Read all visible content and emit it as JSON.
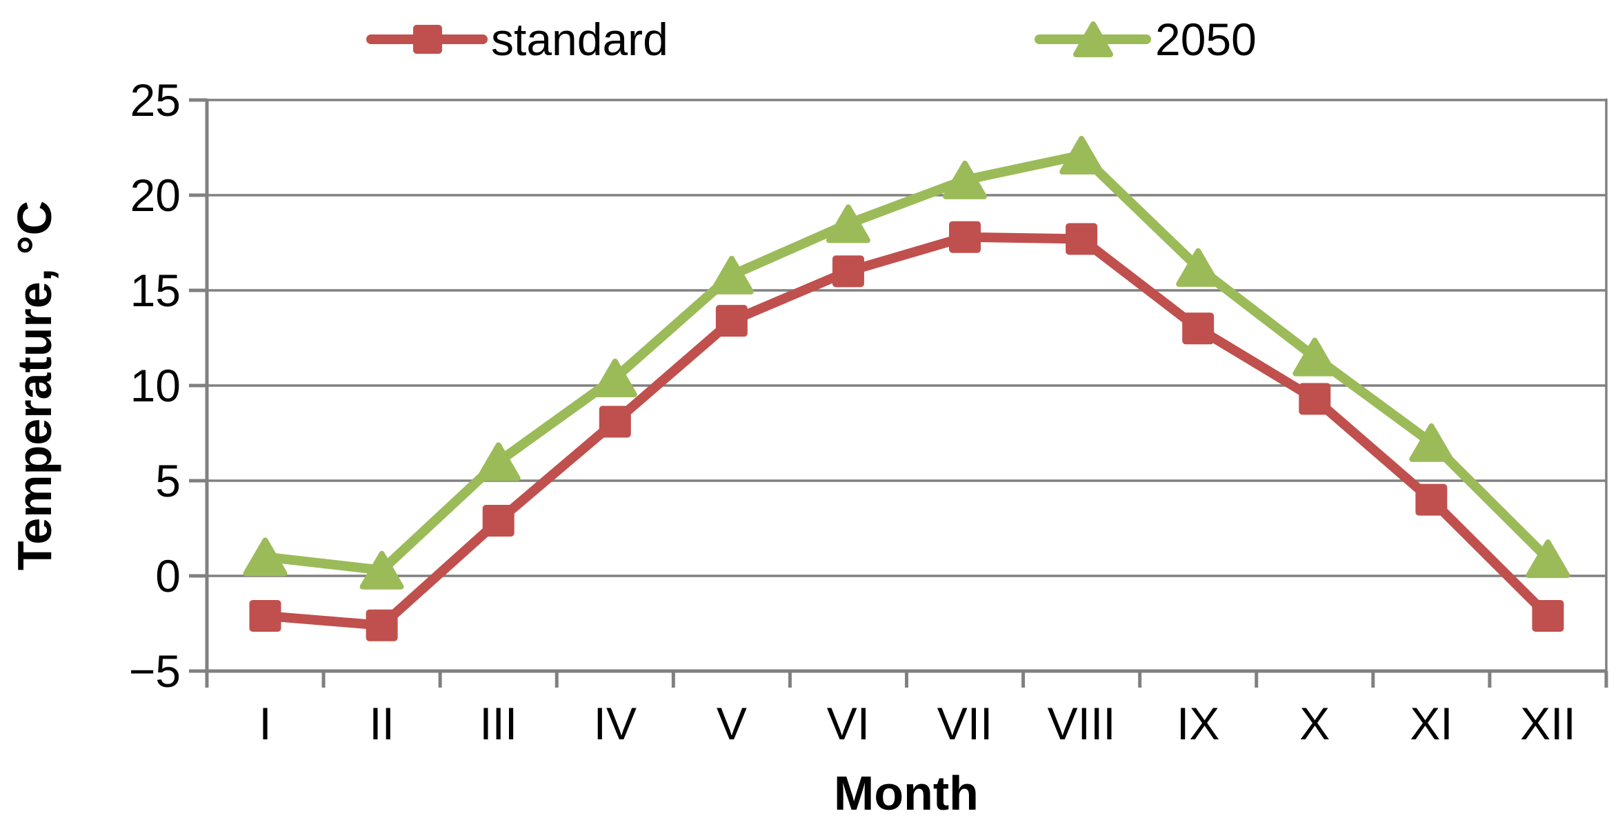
{
  "chart_data": {
    "type": "line",
    "title": "",
    "categories": [
      "I",
      "II",
      "III",
      "IV",
      "V",
      "VI",
      "VII",
      "VIII",
      "IX",
      "X",
      "XI",
      "XII"
    ],
    "series": [
      {
        "name": "standard",
        "color": "#C0504D",
        "marker": "square",
        "values": [
          -2.1,
          -2.6,
          2.9,
          8.1,
          13.4,
          16.0,
          17.8,
          17.7,
          13.0,
          9.3,
          4.0,
          -2.1
        ]
      },
      {
        "name": "2050",
        "color": "#9BBB59",
        "marker": "triangle",
        "values": [
          1.0,
          0.3,
          6.0,
          10.4,
          15.8,
          18.5,
          20.8,
          22.1,
          16.2,
          11.5,
          7.0,
          0.9
        ]
      }
    ],
    "xlabel": "Month",
    "ylabel": "Temperature, °C",
    "ylim": [
      -5,
      25
    ],
    "ytick_step": 5,
    "ytick_labels": [
      "25",
      "20",
      "15",
      "10",
      "5",
      "0",
      "−5"
    ],
    "grid": "horizontal",
    "gridline_color": "#808080",
    "axis_color": "#808080",
    "text_color": "#000000",
    "background": "#FFFFFF",
    "legend_position": "top"
  }
}
